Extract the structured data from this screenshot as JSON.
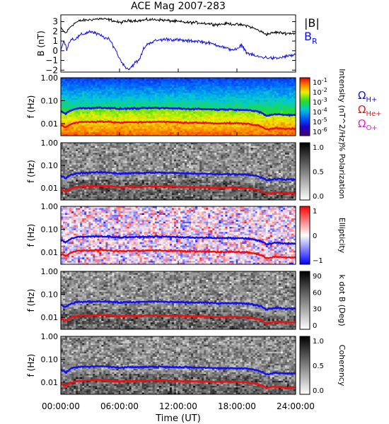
{
  "title": "ACE Mag 2007-283",
  "xlabel": "Time (UT)",
  "x_ticks": [
    "00:00:00",
    "06:00:00",
    "12:00:00",
    "18:00:00",
    "24:00:00"
  ],
  "colors": {
    "total_field": "#000000",
    "radial_field": "#1010ee",
    "omega_h": "#1010ee",
    "omega_he": "#ee1010",
    "omega_o": "#ee10ee"
  },
  "chart_data": [
    {
      "type": "line",
      "ylabel": "B (nT)",
      "ylim": [
        -2.2,
        3.7
      ],
      "y_ticks": [
        -2,
        -1,
        0,
        1,
        2,
        3
      ],
      "x_range_hours": [
        0,
        24
      ],
      "legend_placement": "right",
      "series": [
        {
          "name": "|B|",
          "x": [
            0,
            0.5,
            1,
            1.5,
            2,
            3,
            4,
            5,
            6,
            7,
            8,
            9,
            10,
            11,
            12,
            13,
            14,
            15,
            16,
            17,
            18,
            19,
            20,
            21,
            22,
            23,
            24
          ],
          "values": [
            2.3,
            1.8,
            2.5,
            2.9,
            3.1,
            3.2,
            3.3,
            3.2,
            2.9,
            3.1,
            3.1,
            3.2,
            3.2,
            3.1,
            3.0,
            2.9,
            2.9,
            2.8,
            2.7,
            2.8,
            2.7,
            2.6,
            2.2,
            1.7,
            1.9,
            1.8,
            1.8
          ]
        },
        {
          "name": "B_R",
          "x": [
            0,
            0.3,
            0.6,
            1,
            1.5,
            2,
            3,
            4,
            5,
            5.5,
            6,
            6.5,
            7,
            7.5,
            8,
            8.5,
            9,
            10,
            11,
            12,
            13,
            14,
            15,
            16,
            17,
            18,
            18.5,
            19,
            20,
            21,
            22,
            23,
            24
          ],
          "values": [
            0.0,
            1.0,
            0.2,
            1.2,
            1.2,
            1.6,
            2.0,
            1.6,
            1.1,
            0.3,
            -0.8,
            -1.6,
            -1.9,
            -1.3,
            -1.0,
            0.3,
            0.8,
            1.1,
            1.2,
            1.1,
            1.0,
            1.0,
            0.8,
            0.6,
            0.2,
            0.1,
            0.6,
            -0.2,
            -0.6,
            -0.7,
            -0.8,
            -0.6,
            -0.4
          ]
        }
      ]
    },
    {
      "type": "heatmap",
      "name": "Intensity spectrogram",
      "ylabel": "f (Hz)",
      "y_scale": "log",
      "ylim": [
        0.003,
        1.0
      ],
      "y_ticks": [
        "1.00",
        "0.10",
        "0.01"
      ],
      "colorbar_label": "Intensity (nT^2/Hz)",
      "colorbar_ticks": [
        "10^-1",
        "10^-2",
        "10^-3",
        "10^-4",
        "10^-5",
        "10^-6"
      ],
      "colorscale": "rainbow"
    },
    {
      "type": "heatmap",
      "name": "Polarization",
      "ylabel": "f (Hz)",
      "y_scale": "log",
      "ylim": [
        0.003,
        1.0
      ],
      "y_ticks": [
        "1.00",
        "0.10",
        "0.01"
      ],
      "colorbar_label": "% Polarization",
      "colorbar_ticks": [
        "1.0",
        "0.5",
        "0.0"
      ],
      "colorscale": "grayscale"
    },
    {
      "type": "heatmap",
      "name": "Ellipticity",
      "ylabel": "f (Hz)",
      "y_scale": "log",
      "ylim": [
        0.003,
        1.0
      ],
      "y_ticks": [
        "1.00",
        "0.10",
        "0.01"
      ],
      "colorbar_label": "Ellipticity",
      "colorbar_ticks": [
        "1",
        "0",
        "-1"
      ],
      "colorscale": "blue-white-red"
    },
    {
      "type": "heatmap",
      "name": "k dot B",
      "ylabel": "f (Hz)",
      "y_scale": "log",
      "ylim": [
        0.003,
        1.0
      ],
      "y_ticks": [
        "1.00",
        "0.10",
        "0.01"
      ],
      "colorbar_label": "k dot B (Deg)",
      "colorbar_ticks": [
        "90",
        "60",
        "30",
        "0"
      ],
      "colorscale": "grayscale"
    },
    {
      "type": "heatmap",
      "name": "Coherency",
      "ylabel": "f (Hz)",
      "y_scale": "log",
      "ylim": [
        0.003,
        1.0
      ],
      "y_ticks": [
        "1.00",
        "0.10",
        "0.01"
      ],
      "colorbar_label": "Coherency",
      "colorbar_ticks": [
        "1.0",
        "0.5",
        "0.0"
      ],
      "colorscale": "grayscale"
    }
  ],
  "gyrofrequency_lines": {
    "x": [
      0,
      0.5,
      1,
      1.5,
      2,
      3,
      4,
      5,
      6,
      7,
      8,
      9,
      10,
      11,
      12,
      13,
      14,
      15,
      16,
      17,
      18,
      19,
      20,
      20.5,
      21,
      22,
      23,
      24
    ],
    "omega_h_plus_hz": [
      0.035,
      0.027,
      0.038,
      0.044,
      0.047,
      0.048,
      0.05,
      0.048,
      0.044,
      0.046,
      0.046,
      0.048,
      0.048,
      0.047,
      0.046,
      0.044,
      0.044,
      0.043,
      0.041,
      0.042,
      0.041,
      0.04,
      0.034,
      0.03,
      0.022,
      0.026,
      0.024,
      0.024
    ],
    "omega_he_plus_hz": [
      0.0088,
      0.0068,
      0.0095,
      0.011,
      0.0118,
      0.012,
      0.0125,
      0.012,
      0.011,
      0.0115,
      0.0115,
      0.012,
      0.012,
      0.0118,
      0.0115,
      0.011,
      0.011,
      0.0108,
      0.0103,
      0.0105,
      0.0103,
      0.01,
      0.0085,
      0.0075,
      0.0055,
      0.0065,
      0.006,
      0.006
    ]
  },
  "legends": {
    "field": [
      "|B|",
      "B_R"
    ],
    "gyro": [
      {
        "symbol": "Ω",
        "subscript": "H+"
      },
      {
        "symbol": "Ω",
        "subscript": "He+"
      },
      {
        "symbol": "Ω",
        "subscript": "O+"
      }
    ]
  }
}
